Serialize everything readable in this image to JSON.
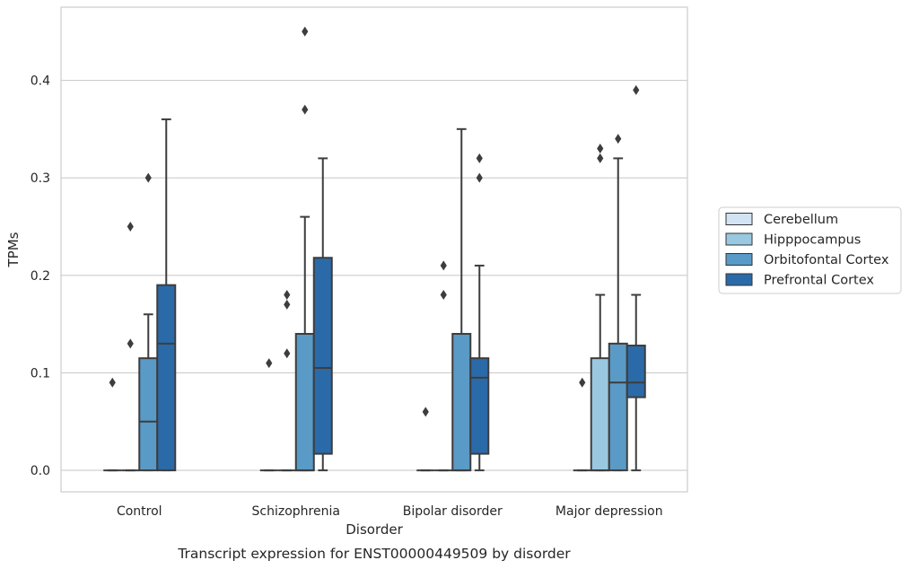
{
  "chart_data": {
    "type": "box",
    "caption": "Transcript expression for ENST00000449509 by disorder",
    "xlabel": "Disorder",
    "ylabel": "TPMs",
    "ylim": [
      -0.022,
      0.475
    ],
    "yticks": [
      0.0,
      0.1,
      0.2,
      0.3,
      0.4
    ],
    "ytick_labels": [
      "0.0",
      "0.1",
      "0.2",
      "0.3",
      "0.4"
    ],
    "grid": "horizontal",
    "legend_position": "right",
    "categories": [
      "Control",
      "Schizophrenia",
      "Bipolar disorder",
      "Major depression"
    ],
    "series": [
      {
        "name": "Cerebellum",
        "color": "#d2e3f3",
        "boxes": [
          {
            "whisker_low": 0,
            "q1": 0,
            "median": 0,
            "q3": 0,
            "whisker_high": 0,
            "outliers": [
              0.09
            ]
          },
          {
            "whisker_low": 0,
            "q1": 0,
            "median": 0,
            "q3": 0,
            "whisker_high": 0,
            "outliers": [
              0.11
            ]
          },
          {
            "whisker_low": 0,
            "q1": 0,
            "median": 0,
            "q3": 0,
            "whisker_high": 0,
            "outliers": [
              0.06
            ]
          },
          {
            "whisker_low": 0,
            "q1": 0,
            "median": 0,
            "q3": 0,
            "whisker_high": 0,
            "outliers": [
              0.09
            ]
          }
        ]
      },
      {
        "name": "Hipppocampus",
        "color": "#9ac8e0",
        "boxes": [
          {
            "whisker_low": 0,
            "q1": 0,
            "median": 0,
            "q3": 0,
            "whisker_high": 0,
            "outliers": [
              0.13,
              0.25
            ]
          },
          {
            "whisker_low": 0,
            "q1": 0,
            "median": 0,
            "q3": 0,
            "whisker_high": 0,
            "outliers": [
              0.12,
              0.17,
              0.18
            ]
          },
          {
            "whisker_low": 0,
            "q1": 0,
            "median": 0,
            "q3": 0,
            "whisker_high": 0,
            "outliers": [
              0.18,
              0.21
            ]
          },
          {
            "whisker_low": 0,
            "q1": 0,
            "median": 0,
            "q3": 0.115,
            "whisker_high": 0.18,
            "outliers": [
              0.32,
              0.33
            ]
          }
        ]
      },
      {
        "name": "Orbitofontal Cortex",
        "color": "#5a9ac6",
        "boxes": [
          {
            "whisker_low": 0,
            "q1": 0,
            "median": 0.05,
            "q3": 0.115,
            "whisker_high": 0.16,
            "outliers": [
              0.3
            ]
          },
          {
            "whisker_low": 0,
            "q1": 0,
            "median": 0,
            "q3": 0.14,
            "whisker_high": 0.26,
            "outliers": [
              0.37,
              0.45
            ]
          },
          {
            "whisker_low": 0,
            "q1": 0,
            "median": 0,
            "q3": 0.14,
            "whisker_high": 0.35,
            "outliers": []
          },
          {
            "whisker_low": 0,
            "q1": 0,
            "median": 0.09,
            "q3": 0.13,
            "whisker_high": 0.32,
            "outliers": [
              0.34
            ]
          }
        ]
      },
      {
        "name": "Prefrontal Cortex",
        "color": "#2b6aa8",
        "boxes": [
          {
            "whisker_low": 0,
            "q1": 0,
            "median": 0.13,
            "q3": 0.19,
            "whisker_high": 0.36,
            "outliers": []
          },
          {
            "whisker_low": 0,
            "q1": 0.017,
            "median": 0.105,
            "q3": 0.218,
            "whisker_high": 0.32,
            "outliers": []
          },
          {
            "whisker_low": 0,
            "q1": 0.017,
            "median": 0.095,
            "q3": 0.115,
            "whisker_high": 0.21,
            "outliers": [
              0.3,
              0.32
            ]
          },
          {
            "whisker_low": 0,
            "q1": 0.075,
            "median": 0.09,
            "q3": 0.128,
            "whisker_high": 0.18,
            "outliers": [
              0.39
            ]
          }
        ]
      }
    ]
  }
}
